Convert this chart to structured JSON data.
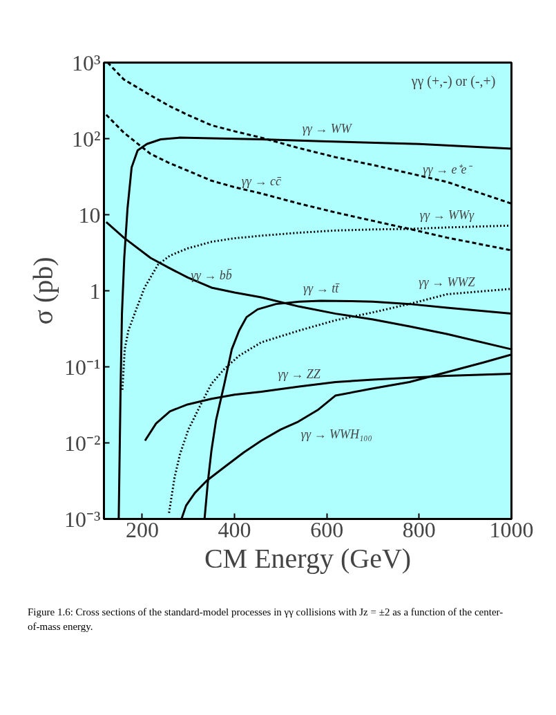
{
  "chart_data": {
    "type": "line",
    "xlabel": "CM Energy (GeV)",
    "ylabel": "σ (pb)",
    "log": "y",
    "xlim": [
      117,
      1000
    ],
    "ylim": [
      0.001,
      1000
    ],
    "xticks": [
      200,
      400,
      600,
      800,
      1000
    ],
    "yticks": [
      {
        "value": 0.001,
        "label": "10⁻³"
      },
      {
        "value": 0.01,
        "label": "10⁻²"
      },
      {
        "value": 0.1,
        "label": "10⁻¹"
      },
      1,
      10,
      {
        "value": 100,
        "label": "10²"
      },
      {
        "value": 1000,
        "label": "10³"
      }
    ],
    "grid": false,
    "series": [
      {
        "color": "#000000",
        "line_style": "solid",
        "x": [
          149,
          153,
          156,
          161,
          168,
          177,
          190,
          210,
          240,
          282,
          350,
          458,
          600,
          800,
          1000
        ],
        "values": [
          0.001,
          0.05,
          0.5,
          2.7,
          12,
          42,
          70,
          85,
          98,
          103,
          101,
          98,
          92,
          85,
          74
        ]
      },
      {
        "color": "#000000",
        "line_style": "dashed",
        "x": [
          125,
          160,
          218,
          258,
          298,
          350,
          400,
          458,
          540,
          619,
          700,
          779,
          860,
          1000
        ],
        "values": [
          1000,
          600,
          371,
          270,
          206,
          150,
          125,
          103,
          75,
          57,
          45,
          35,
          27,
          14
        ]
      },
      {
        "color": "#000000",
        "line_style": "dashed",
        "x": [
          122,
          160,
          218,
          258,
          298,
          350,
          400,
          458,
          540,
          619,
          700,
          779,
          860,
          1000
        ],
        "values": [
          206,
          120,
          63,
          48,
          38,
          28,
          23,
          19,
          14,
          10.7,
          8.3,
          6.5,
          5,
          3.4
        ]
      },
      {
        "color": "#000000",
        "line_style": "dotted",
        "x": [
          157,
          162,
          170,
          186,
          205,
          234,
          260,
          298,
          350,
          400,
          458,
          540,
          619,
          700,
          779,
          860,
          1000
        ],
        "values": [
          0.05,
          0.17,
          0.3,
          0.55,
          1.1,
          2.2,
          2.9,
          3.6,
          4.4,
          4.9,
          5.3,
          5.8,
          6.2,
          6.4,
          6.5,
          6.8,
          7.2
        ]
      },
      {
        "color": "#000000",
        "line_style": "solid",
        "x": [
          122,
          160,
          218,
          258,
          298,
          350,
          400,
          458,
          540,
          619,
          700,
          779,
          860,
          1000
        ],
        "values": [
          8,
          5,
          2.7,
          2,
          1.5,
          1.1,
          0.95,
          0.82,
          0.62,
          0.5,
          0.42,
          0.34,
          0.27,
          0.17
        ]
      },
      {
        "color": "#000000",
        "line_style": "solid",
        "x": [
          335,
          342,
          350,
          360,
          378,
          394,
          410,
          426,
          450,
          490,
          540,
          587,
          650,
          700,
          779,
          860,
          1000
        ],
        "values": [
          0.001,
          0.003,
          0.008,
          0.02,
          0.06,
          0.17,
          0.3,
          0.45,
          0.57,
          0.67,
          0.72,
          0.74,
          0.73,
          0.72,
          0.67,
          0.6,
          0.5
        ]
      },
      {
        "color": "#000000",
        "line_style": "dotted",
        "x": [
          258,
          270,
          282,
          300,
          330,
          350,
          378,
          410,
          458,
          540,
          619,
          700,
          779,
          860,
          1000
        ],
        "values": [
          0.0012,
          0.0035,
          0.0072,
          0.015,
          0.035,
          0.06,
          0.094,
          0.14,
          0.21,
          0.3,
          0.41,
          0.52,
          0.67,
          0.9,
          1.06
        ]
      },
      {
        "color": "#000000",
        "line_style": "solid",
        "x": [
          206,
          230,
          260,
          298,
          350,
          400,
          458,
          540,
          619,
          700,
          779,
          860,
          1000
        ],
        "values": [
          0.0107,
          0.018,
          0.026,
          0.032,
          0.038,
          0.043,
          0.047,
          0.055,
          0.063,
          0.068,
          0.072,
          0.076,
          0.081
        ]
      },
      {
        "color": "#000000",
        "line_style": "solid",
        "x": [
          285,
          295,
          314,
          340,
          378,
          420,
          458,
          500,
          538,
          580,
          619,
          700,
          779,
          860,
          939,
          1000
        ],
        "values": [
          0.001,
          0.0015,
          0.0022,
          0.0032,
          0.0048,
          0.0075,
          0.0107,
          0.015,
          0.019,
          0.027,
          0.042,
          0.052,
          0.063,
          0.085,
          0.114,
          0.145
        ]
      }
    ],
    "annotations": [
      {
        "text": "γγ → WW",
        "x": 600,
        "y": 92
      },
      {
        "text": "γγ → e⁺e⁻",
        "x": 860,
        "y": 27
      },
      {
        "text": "γγ → cc̄",
        "x": 458,
        "y": 19
      },
      {
        "text": "γγ → WWγ",
        "x": 860,
        "y": 6.8
      },
      {
        "text": "γγ → tt̄",
        "x": 587,
        "y": 0.74
      },
      {
        "text": "γγ → WWZ",
        "x": 860,
        "y": 0.9
      },
      {
        "text": "γγ → bb̄",
        "x": 350,
        "y": 1.1
      },
      {
        "text": "γγ → ZZ",
        "x": 540,
        "y": 0.055
      },
      {
        "text": "γγ → WWH₁₀₀",
        "x": 538,
        "y": 0.019
      },
      "γγ  (+,-)  or  (-,+)",
      "Figure 1.6: Cross sections of the standard-model processes in γγ collisions with Jz = ±2 as a function of the center-of-mass energy."
    ]
  }
}
